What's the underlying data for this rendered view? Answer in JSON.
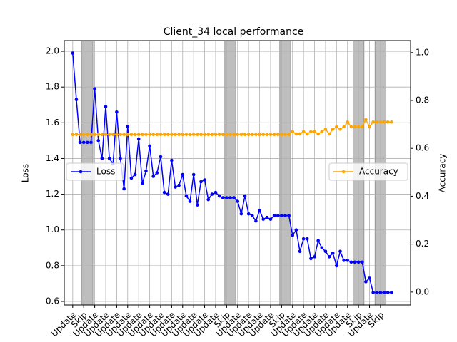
{
  "chart_data": {
    "type": "line",
    "title": "Client_34 local performance",
    "x": [
      0,
      1,
      2,
      3,
      4,
      5,
      6,
      7,
      8,
      9,
      10,
      11,
      12,
      13,
      14,
      15,
      16,
      17,
      18,
      19,
      20,
      21,
      22,
      23,
      24,
      25,
      26,
      27,
      28,
      29,
      30,
      31,
      32,
      33,
      34,
      35,
      36,
      37,
      38,
      39,
      40,
      41,
      42,
      43,
      44,
      45,
      46,
      47,
      48,
      49,
      50,
      51,
      52,
      53,
      54,
      55,
      56,
      57,
      58,
      59,
      60,
      61,
      62,
      63,
      64,
      65,
      66,
      67,
      68,
      69,
      70,
      71,
      72,
      73,
      74,
      75,
      76,
      77,
      78,
      79,
      80,
      81,
      82,
      83,
      84,
      85,
      86,
      87
    ],
    "xlim": [
      -2.3,
      92.2
    ],
    "xticks": [
      {
        "value": 0,
        "label": "Update"
      },
      {
        "value": 3,
        "label": "Skip"
      },
      {
        "value": 6,
        "label": "Update"
      },
      {
        "value": 9,
        "label": "Update"
      },
      {
        "value": 12,
        "label": "Update"
      },
      {
        "value": 15,
        "label": "Update"
      },
      {
        "value": 18,
        "label": "Update"
      },
      {
        "value": 21,
        "label": "Update"
      },
      {
        "value": 24,
        "label": "Update"
      },
      {
        "value": 27,
        "label": "Update"
      },
      {
        "value": 30,
        "label": "Update"
      },
      {
        "value": 33,
        "label": "Update"
      },
      {
        "value": 36,
        "label": "Update"
      },
      {
        "value": 39,
        "label": "Update"
      },
      {
        "value": 42,
        "label": "Skip"
      },
      {
        "value": 45,
        "label": "Update"
      },
      {
        "value": 48,
        "label": "Update"
      },
      {
        "value": 51,
        "label": "Update"
      },
      {
        "value": 54,
        "label": "Update"
      },
      {
        "value": 57,
        "label": "Skip"
      },
      {
        "value": 60,
        "label": "Update"
      },
      {
        "value": 63,
        "label": "Update"
      },
      {
        "value": 66,
        "label": "Update"
      },
      {
        "value": 69,
        "label": "Update"
      },
      {
        "value": 72,
        "label": "Update"
      },
      {
        "value": 75,
        "label": "Update"
      },
      {
        "value": 78,
        "label": "Skip"
      },
      {
        "value": 81,
        "label": "Update"
      },
      {
        "value": 84,
        "label": "Skip"
      }
    ],
    "skip_spans": [
      [
        2.5,
        5.5
      ],
      [
        41.5,
        44.5
      ],
      [
        56.5,
        59.5
      ],
      [
        76.5,
        79.5
      ],
      [
        82.5,
        85.5
      ]
    ],
    "skip_color": "#bebebe",
    "ylabel": "Loss",
    "y2label": "Accuracy",
    "ylim": [
      0.58,
      2.06
    ],
    "yticks": [
      0.6,
      0.8,
      {
        "value": 1.0,
        "label": "1.0"
      },
      1.2,
      1.4,
      1.6,
      1.8,
      {
        "value": 2.0,
        "label": "2.0"
      }
    ],
    "y2lim": [
      -0.054,
      1.05
    ],
    "y2ticks": [
      {
        "value": 0.0,
        "label": "0.0"
      },
      0.2,
      0.4,
      0.6,
      0.8,
      {
        "value": 1.0,
        "label": "1.0"
      }
    ],
    "grid": true,
    "series": [
      {
        "name": "Loss",
        "color": "#0000ff",
        "legend": "left",
        "values": [
          1.99,
          1.73,
          1.49,
          1.49,
          1.49,
          1.49,
          1.79,
          1.5,
          1.4,
          1.69,
          1.4,
          1.37,
          1.66,
          1.4,
          1.23,
          1.58,
          1.29,
          1.31,
          1.51,
          1.26,
          1.33,
          1.47,
          1.3,
          1.32,
          1.41,
          1.21,
          1.2,
          1.39,
          1.24,
          1.25,
          1.31,
          1.19,
          1.16,
          1.31,
          1.14,
          1.27,
          1.28,
          1.17,
          1.2,
          1.21,
          1.19,
          1.18,
          1.18,
          1.18,
          1.18,
          1.16,
          1.09,
          1.19,
          1.09,
          1.08,
          1.05,
          1.11,
          1.06,
          1.07,
          1.06,
          1.08,
          1.08,
          1.08,
          1.08,
          1.08,
          0.97,
          1.0,
          0.88,
          0.95,
          0.95,
          0.84,
          0.85,
          0.94,
          0.9,
          0.88,
          0.85,
          0.87,
          0.8,
          0.88,
          0.83,
          0.83,
          0.82,
          0.82,
          0.82,
          0.82,
          0.71,
          0.73,
          0.65,
          0.65,
          0.65,
          0.65,
          0.65,
          0.65
        ]
      },
      {
        "name": "Accuracy",
        "color": "#ffa500",
        "axis": "y2",
        "legend": "right",
        "values": [
          0.658,
          0.658,
          0.658,
          0.658,
          0.658,
          0.658,
          0.658,
          0.658,
          0.658,
          0.658,
          0.658,
          0.658,
          0.658,
          0.658,
          0.658,
          0.658,
          0.658,
          0.658,
          0.658,
          0.658,
          0.658,
          0.658,
          0.658,
          0.658,
          0.658,
          0.658,
          0.658,
          0.658,
          0.658,
          0.658,
          0.658,
          0.658,
          0.658,
          0.658,
          0.658,
          0.658,
          0.658,
          0.658,
          0.658,
          0.658,
          0.658,
          0.658,
          0.658,
          0.658,
          0.658,
          0.658,
          0.658,
          0.658,
          0.658,
          0.658,
          0.658,
          0.658,
          0.658,
          0.658,
          0.658,
          0.658,
          0.658,
          0.658,
          0.658,
          0.658,
          0.67,
          0.66,
          0.66,
          0.67,
          0.66,
          0.67,
          0.67,
          0.66,
          0.67,
          0.68,
          0.66,
          0.68,
          0.69,
          0.68,
          0.69,
          0.71,
          0.69,
          0.69,
          0.69,
          0.69,
          0.72,
          0.69,
          0.71,
          0.71,
          0.71,
          0.71,
          0.71,
          0.71
        ]
      }
    ]
  }
}
